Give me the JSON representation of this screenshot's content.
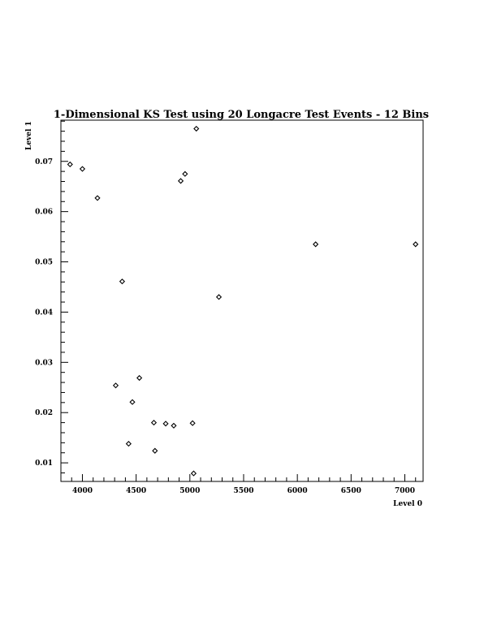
{
  "chart_data": {
    "type": "scatter",
    "title": "1-Dimensional KS Test using 20 Longacre Test Events - 12 Bins",
    "xlabel": "Level 0",
    "ylabel": "Level 1",
    "xlim": [
      3800,
      7170
    ],
    "ylim": [
      0.0063,
      0.0782
    ],
    "xticks": [
      4000,
      4500,
      5000,
      5500,
      6000,
      6500,
      7000
    ],
    "xtick_labels": [
      "4000",
      "4500",
      "5000",
      "5500",
      "6000",
      "6500",
      "7000"
    ],
    "yticks": [
      0.01,
      0.02,
      0.03,
      0.04,
      0.05,
      0.06,
      0.07
    ],
    "ytick_labels": [
      "0.01",
      "0.02",
      "0.03",
      "0.04",
      "0.05",
      "0.06",
      "0.07"
    ],
    "marker": "diamond",
    "grid": false,
    "points": [
      {
        "x": 3885,
        "y": 0.0694
      },
      {
        "x": 4000,
        "y": 0.0685
      },
      {
        "x": 4140,
        "y": 0.0627
      },
      {
        "x": 4310,
        "y": 0.0254
      },
      {
        "x": 4370,
        "y": 0.0461
      },
      {
        "x": 4430,
        "y": 0.0138
      },
      {
        "x": 4465,
        "y": 0.0221
      },
      {
        "x": 4530,
        "y": 0.0269
      },
      {
        "x": 4665,
        "y": 0.018
      },
      {
        "x": 4675,
        "y": 0.0124
      },
      {
        "x": 4775,
        "y": 0.0178
      },
      {
        "x": 4850,
        "y": 0.0174
      },
      {
        "x": 4915,
        "y": 0.0661
      },
      {
        "x": 4955,
        "y": 0.0675
      },
      {
        "x": 5025,
        "y": 0.0179
      },
      {
        "x": 5035,
        "y": 0.0079
      },
      {
        "x": 5060,
        "y": 0.0765
      },
      {
        "x": 5270,
        "y": 0.043
      },
      {
        "x": 6170,
        "y": 0.0535
      },
      {
        "x": 7100,
        "y": 0.0535
      }
    ]
  }
}
